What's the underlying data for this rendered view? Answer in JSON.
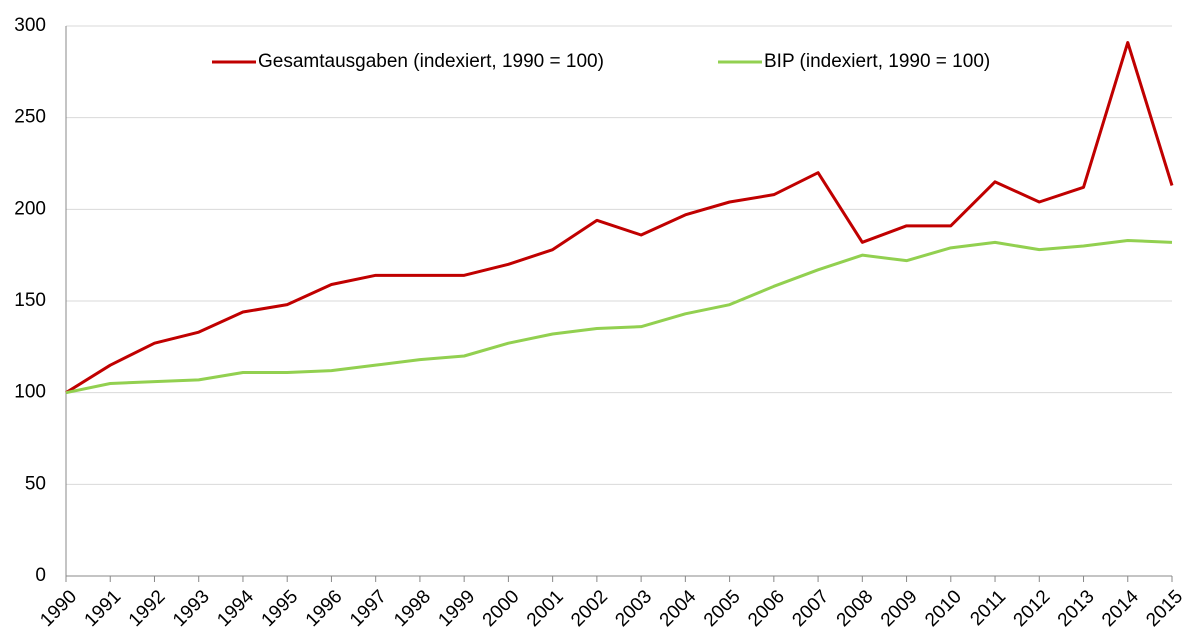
{
  "chart_data": {
    "type": "line",
    "categories": [
      "1990",
      "1991",
      "1992",
      "1993",
      "1994",
      "1995",
      "1996",
      "1997",
      "1998",
      "1999",
      "2000",
      "2001",
      "2002",
      "2003",
      "2004",
      "2005",
      "2006",
      "2007",
      "2008",
      "2009",
      "2010",
      "2011",
      "2012",
      "2013",
      "2014",
      "2015"
    ],
    "series": [
      {
        "name": "Gesamtausgaben (indexiert, 1990 = 100)",
        "color": "#c00000",
        "values": [
          100,
          115,
          127,
          133,
          144,
          148,
          159,
          164,
          164,
          164,
          170,
          178,
          194,
          186,
          197,
          204,
          208,
          220,
          182,
          191,
          191,
          215,
          204,
          212,
          291,
          213
        ]
      },
      {
        "name": "BIP  (indexiert, 1990 = 100)",
        "color": "#92d050",
        "values": [
          100,
          105,
          106,
          107,
          111,
          111,
          112,
          115,
          118,
          120,
          127,
          132,
          135,
          136,
          143,
          148,
          158,
          167,
          175,
          172,
          179,
          182,
          178,
          180,
          183,
          182
        ]
      }
    ],
    "ylim": [
      0,
      300
    ],
    "yticks": [
      0,
      50,
      100,
      150,
      200,
      250,
      300
    ],
    "grid": true,
    "legend": "top"
  }
}
